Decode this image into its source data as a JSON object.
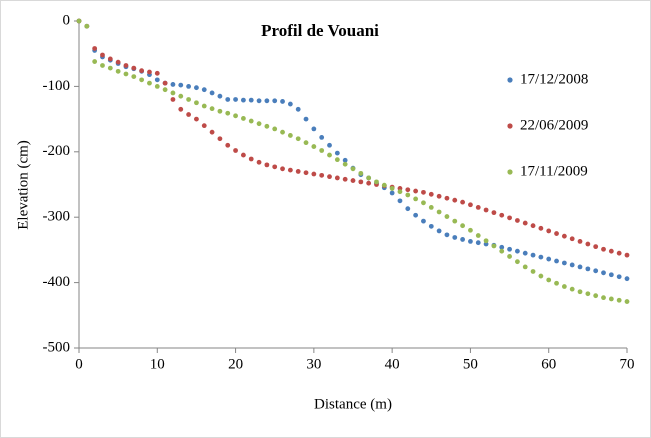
{
  "chart_data": {
    "type": "scatter",
    "title": "Profil de Vouani",
    "x_label": "Distance (m)",
    "y_label": "Elevation (cm)",
    "x": [
      0,
      1,
      2,
      3,
      4,
      5,
      6,
      7,
      8,
      9,
      10,
      11,
      12,
      13,
      14,
      15,
      16,
      17,
      18,
      19,
      20,
      21,
      22,
      23,
      24,
      25,
      26,
      27,
      28,
      29,
      30,
      31,
      32,
      33,
      34,
      35,
      36,
      37,
      38,
      39,
      40,
      41,
      42,
      43,
      44,
      45,
      46,
      47,
      48,
      49,
      50,
      51,
      52,
      53,
      54,
      55,
      56,
      57,
      58,
      59,
      60,
      61,
      62,
      63,
      64,
      65,
      66,
      67,
      68,
      69,
      70
    ],
    "series": [
      {
        "name": "17/12/2008",
        "color": "#4a7ebb",
        "values": [
          0,
          -8,
          -45,
          -55,
          -60,
          -65,
          -70,
          -73,
          -77,
          -82,
          -90,
          -95,
          -97,
          -98,
          -100,
          -102,
          -105,
          -110,
          -115,
          -120,
          -120,
          -121,
          -121,
          -122,
          -122,
          -122,
          -123,
          -127,
          -135,
          -150,
          -165,
          -178,
          -190,
          -202,
          -213,
          -225,
          -235,
          -240,
          -248,
          -255,
          -263,
          -275,
          -287,
          -297,
          -306,
          -314,
          -321,
          -327,
          -331,
          -334,
          -337,
          -339,
          -341,
          -343,
          -346,
          -349,
          -352,
          -355,
          -358,
          -361,
          -364,
          -367,
          -370,
          -373,
          -376,
          -379,
          -382,
          -385,
          -388,
          -391,
          -394
        ]
      },
      {
        "name": "22/06/2009",
        "color": "#be4b48",
        "values": [
          0,
          -8,
          -42,
          -52,
          -58,
          -63,
          -68,
          -72,
          -76,
          -78,
          -80,
          -95,
          -120,
          -135,
          -143,
          -150,
          -160,
          -170,
          -180,
          -190,
          -198,
          -205,
          -211,
          -216,
          -220,
          -223,
          -226,
          -228,
          -230,
          -232,
          -234,
          -236,
          -238,
          -240,
          -242,
          -244,
          -246,
          -248,
          -250,
          -252,
          -254,
          -256,
          -258,
          -260,
          -262,
          -265,
          -268,
          -271,
          -274,
          -277,
          -281,
          -285,
          -289,
          -293,
          -297,
          -301,
          -305,
          -309,
          -313,
          -317,
          -321,
          -325,
          -329,
          -333,
          -337,
          -341,
          -345,
          -349,
          -352,
          -355,
          -358
        ]
      },
      {
        "name": "17/11/2009",
        "color": "#98b954",
        "values": [
          0,
          -8,
          -62,
          -68,
          -72,
          -77,
          -81,
          -85,
          -90,
          -95,
          -100,
          -105,
          -110,
          -115,
          -120,
          -125,
          -130,
          -134,
          -138,
          -141,
          -145,
          -149,
          -153,
          -157,
          -161,
          -165,
          -170,
          -175,
          -180,
          -186,
          -192,
          -198,
          -205,
          -212,
          -219,
          -226,
          -233,
          -240,
          -246,
          -251,
          -256,
          -261,
          -266,
          -272,
          -278,
          -285,
          -292,
          -299,
          -306,
          -313,
          -320,
          -328,
          -336,
          -344,
          -352,
          -360,
          -368,
          -376,
          -383,
          -390,
          -396,
          -401,
          -406,
          -410,
          -414,
          -417,
          -420,
          -423,
          -425,
          -427,
          -429
        ]
      }
    ],
    "xlim": [
      0,
      70
    ],
    "xticks": [
      0,
      10,
      20,
      30,
      40,
      50,
      60,
      70
    ],
    "ylim": [
      -500,
      0
    ],
    "yticks": [
      0,
      -100,
      -200,
      -300,
      -400,
      -500
    ],
    "legend": "right",
    "grid": false
  }
}
